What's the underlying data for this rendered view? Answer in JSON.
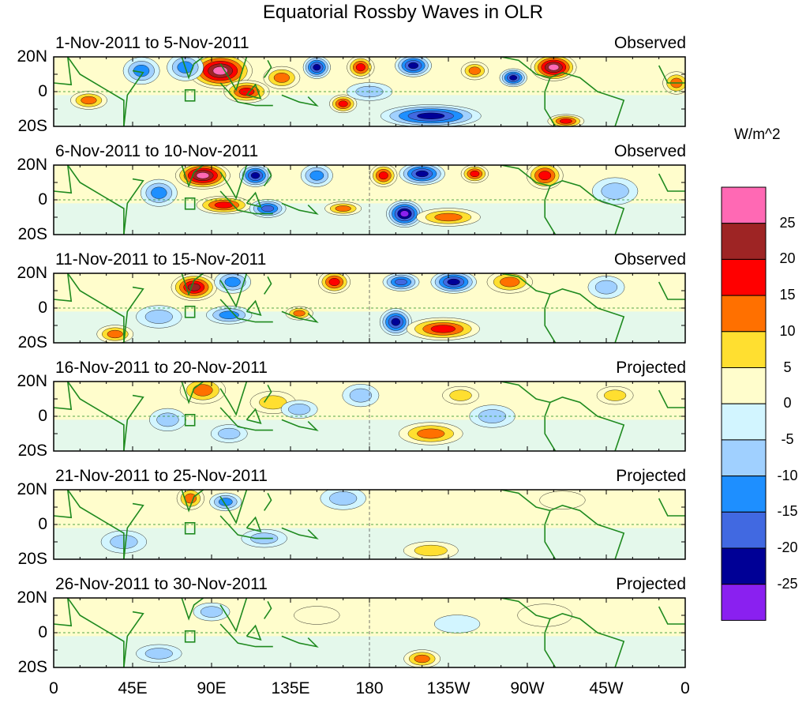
{
  "title": "Equatorial Rossby Waves in OLR",
  "colorbar": {
    "units": "W/m^2",
    "levels": [
      "25",
      "20",
      "15",
      "10",
      "5",
      "0",
      "-5",
      "-10",
      "-15",
      "-20",
      "-25"
    ],
    "colors": [
      "#ff69b4",
      "#9e2424",
      "#ff0000",
      "#ff7000",
      "#ffdf30",
      "#fffdcc",
      "#d2f5ff",
      "#a0d0ff",
      "#1e8fff",
      "#4169e1",
      "#000096",
      "#8a20f0"
    ]
  },
  "y_ticks": [
    "20N",
    "0",
    "20S"
  ],
  "x_ticks": [
    "0",
    "45E",
    "90E",
    "135E",
    "180",
    "135W",
    "90W",
    "45W",
    "0"
  ],
  "panels": [
    {
      "dates": "1-Nov-2011 to 5-Nov-2011",
      "type": "Observed",
      "anomalies": [
        [
          95,
          12,
          14,
          8,
          29
        ],
        [
          75,
          14,
          8,
          6,
          -12
        ],
        [
          150,
          14,
          6,
          5,
          -22
        ],
        [
          165,
          -7,
          6,
          4,
          17
        ],
        [
          175,
          14,
          6,
          5,
          16
        ],
        [
          205,
          15,
          8,
          5,
          -23
        ],
        [
          215,
          -14,
          22,
          5,
          -24
        ],
        [
          110,
          0,
          10,
          5,
          18
        ],
        [
          130,
          8,
          8,
          5,
          14
        ],
        [
          20,
          -5,
          8,
          4,
          12
        ],
        [
          285,
          14,
          10,
          6,
          28
        ],
        [
          262,
          8,
          6,
          4,
          -22
        ],
        [
          240,
          12,
          6,
          4,
          12
        ],
        [
          355,
          5,
          6,
          5,
          14
        ],
        [
          292,
          -17,
          8,
          3,
          16
        ],
        [
          50,
          12,
          8,
          6,
          -10
        ],
        [
          180,
          0,
          10,
          4,
          -8
        ]
      ]
    },
    {
      "dates": "6-Nov-2011 to 10-Nov-2011",
      "type": "Observed",
      "anomalies": [
        [
          85,
          14,
          12,
          6,
          28
        ],
        [
          115,
          14,
          7,
          5,
          -22
        ],
        [
          97,
          -3,
          12,
          4,
          18
        ],
        [
          122,
          -5,
          8,
          4,
          -17
        ],
        [
          200,
          -8,
          8,
          6,
          -27
        ],
        [
          210,
          15,
          10,
          5,
          -22
        ],
        [
          188,
          14,
          6,
          5,
          16
        ],
        [
          240,
          15,
          6,
          4,
          18
        ],
        [
          280,
          14,
          8,
          6,
          18
        ],
        [
          225,
          -10,
          14,
          4,
          14
        ],
        [
          60,
          4,
          8,
          6,
          -12
        ],
        [
          150,
          14,
          7,
          5,
          -12
        ],
        [
          165,
          -5,
          8,
          3,
          12
        ],
        [
          320,
          5,
          10,
          6,
          -8
        ]
      ]
    },
    {
      "dates": "11-Nov-2011 to 15-Nov-2011",
      "type": "Observed",
      "anomalies": [
        [
          80,
          12,
          10,
          6,
          20
        ],
        [
          102,
          15,
          8,
          5,
          -13
        ],
        [
          195,
          -8,
          7,
          6,
          -23
        ],
        [
          222,
          -12,
          16,
          5,
          19
        ],
        [
          228,
          15,
          10,
          5,
          -20
        ],
        [
          198,
          15,
          8,
          4,
          -17
        ],
        [
          160,
          15,
          7,
          5,
          16
        ],
        [
          100,
          -4,
          10,
          4,
          -12
        ],
        [
          140,
          -3,
          6,
          3,
          14
        ],
        [
          60,
          -5,
          10,
          5,
          -8
        ],
        [
          35,
          -15,
          8,
          4,
          10
        ],
        [
          260,
          15,
          10,
          5,
          12
        ],
        [
          315,
          12,
          8,
          5,
          -8
        ]
      ]
    },
    {
      "dates": "16-Nov-2011 to 20-Nov-2011",
      "type": "Projected",
      "anomalies": [
        [
          85,
          15,
          10,
          6,
          13
        ],
        [
          215,
          -10,
          14,
          5,
          14
        ],
        [
          125,
          8,
          10,
          5,
          8
        ],
        [
          140,
          4,
          8,
          4,
          -9
        ],
        [
          175,
          12,
          8,
          5,
          -9
        ],
        [
          232,
          12,
          8,
          4,
          8
        ],
        [
          65,
          -2,
          8,
          5,
          -8
        ],
        [
          100,
          -10,
          8,
          4,
          -7
        ],
        [
          320,
          12,
          8,
          4,
          6
        ],
        [
          250,
          0,
          10,
          5,
          -5
        ]
      ]
    },
    {
      "dates": "21-Nov-2011 to 25-Nov-2011",
      "type": "Projected",
      "anomalies": [
        [
          78,
          15,
          6,
          5,
          11
        ],
        [
          98,
          13,
          7,
          4,
          -11
        ],
        [
          165,
          15,
          10,
          5,
          -7
        ],
        [
          215,
          -15,
          12,
          4,
          8
        ],
        [
          120,
          -8,
          10,
          4,
          -6
        ],
        [
          290,
          14,
          10,
          4,
          4
        ],
        [
          40,
          -10,
          10,
          5,
          -5
        ]
      ]
    },
    {
      "dates": "26-Nov-2011 to 30-Nov-2011",
      "type": "Projected",
      "anomalies": [
        [
          210,
          -15,
          8,
          4,
          11
        ],
        [
          90,
          12,
          8,
          4,
          -6
        ],
        [
          150,
          10,
          10,
          4,
          4
        ],
        [
          60,
          -12,
          10,
          4,
          -5
        ],
        [
          280,
          10,
          12,
          5,
          4
        ],
        [
          230,
          5,
          10,
          4,
          -4
        ]
      ]
    }
  ]
}
